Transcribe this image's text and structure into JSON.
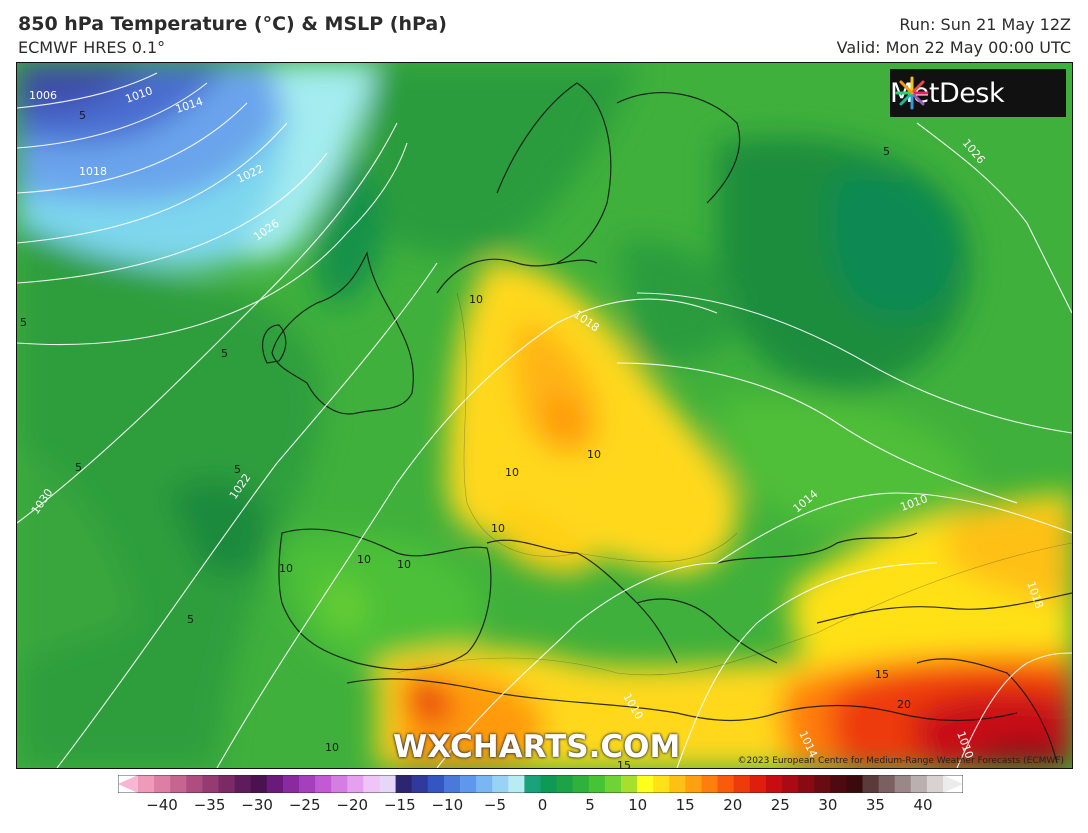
{
  "header": {
    "title": "850 hPa Temperature (°C) & MSLP (hPa)",
    "model": "ECMWF HRES 0.1°",
    "run": "Run: Sun 21 May 12Z",
    "valid": "Valid: Mon 22 May 00:00 UTC"
  },
  "logo": {
    "text": "MetDesk",
    "icon": "metdesk-starburst-icon"
  },
  "watermark": "WXCHARTS.COM",
  "copyright": "©2023 European Centre for Medium-Range Weather Forecasts (ECMWF)",
  "isobar_labels": [
    "1006",
    "1010",
    "1014",
    "1018",
    "1022",
    "1026",
    "1030",
    "1022",
    "1018",
    "1026",
    "1014",
    "1010",
    "1010",
    "1010",
    "1018",
    "1014"
  ],
  "temperature_labels": [
    "5",
    "5",
    "5",
    "5",
    "5",
    "5",
    "5",
    "10",
    "10",
    "10",
    "10",
    "10",
    "10",
    "10",
    "10",
    "15",
    "15",
    "20"
  ],
  "colorbar": {
    "ticks": [
      "−40",
      "−35",
      "−30",
      "−25",
      "−20",
      "−15",
      "−10",
      "−5",
      "0",
      "5",
      "10",
      "15",
      "20",
      "25",
      "30",
      "35",
      "40"
    ],
    "colors": [
      "#f7b6d2",
      "#ef9ab8",
      "#dd7fa4",
      "#c76591",
      "#b04d80",
      "#963a72",
      "#7c2a66",
      "#5f1c5a",
      "#4a1250",
      "#6a1a7a",
      "#8a2aa0",
      "#a63fbd",
      "#c25ad3",
      "#d47de3",
      "#e3a1ef",
      "#efc4f6",
      "#e6d6f7",
      "#2c2670",
      "#2f3a9c",
      "#3456c2",
      "#4a78db",
      "#5f98ea",
      "#7bb6f2",
      "#98d2f5",
      "#b8ecf3",
      "#1aa37a",
      "#0e9a54",
      "#1ea246",
      "#2fb23c",
      "#46c436",
      "#6fd235",
      "#a6e02c",
      "#ffff1e",
      "#ffe118",
      "#ffc014",
      "#ffa010",
      "#ff7e0c",
      "#f95b0a",
      "#ee3b0a",
      "#e01e0e",
      "#c80d12",
      "#aa0a14",
      "#8a0a14",
      "#6a0a12",
      "#4e0a10",
      "#3a0a0c",
      "#5a3a3a",
      "#7a6060",
      "#9a8888",
      "#bbb0b0",
      "#d8d2d2",
      "#ececec"
    ]
  }
}
